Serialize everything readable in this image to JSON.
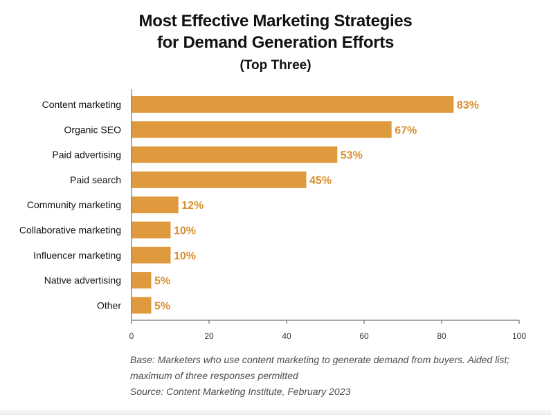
{
  "chart_data": {
    "type": "bar",
    "orientation": "horizontal",
    "title": "Most Effective Marketing Strategies",
    "title_line2": "for Demand Generation Efforts",
    "subtitle": "(Top Three)",
    "categories": [
      "Content marketing",
      "Organic SEO",
      "Paid advertising",
      "Paid search",
      "Community marketing",
      "Collaborative marketing",
      "Influencer marketing",
      "Native advertising",
      "Other"
    ],
    "values": [
      83,
      67,
      53,
      45,
      12,
      10,
      10,
      5,
      5
    ],
    "value_labels": [
      "83%",
      "67%",
      "53%",
      "45%",
      "12%",
      "10%",
      "10%",
      "5%",
      "5%"
    ],
    "xlim": [
      0,
      100
    ],
    "xticks": [
      0,
      20,
      40,
      60,
      80,
      100
    ],
    "xtick_labels": [
      "0",
      "20",
      "40",
      "60",
      "80",
      "100"
    ],
    "xlabel": "",
    "ylabel": "",
    "grid": false,
    "bar_color": "#E09A3E",
    "label_color": "#D98E2F"
  },
  "footnote": {
    "base_line1": "Base: Marketers who use content marketing to generate demand from buyers. Aided list;",
    "base_line2": "maximum of three responses permitted",
    "source": "Source: Content Marketing Institute, February 2023"
  }
}
